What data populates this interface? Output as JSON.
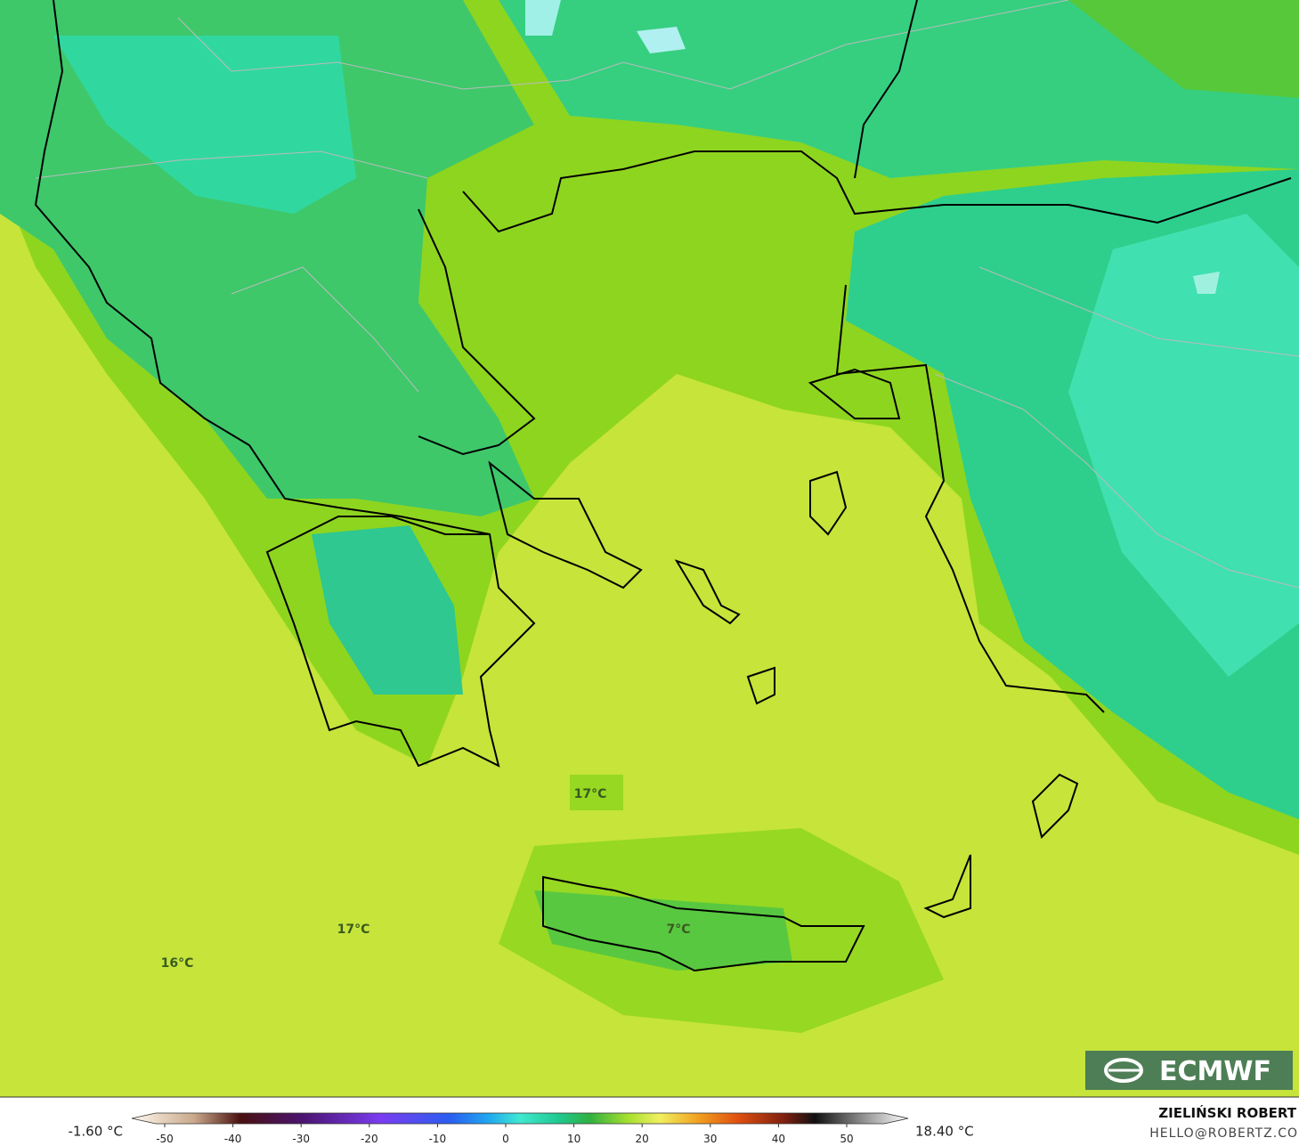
{
  "map": {
    "labels": [
      {
        "text": "17°C"
      },
      {
        "text": "17°C"
      },
      {
        "text": "16°C"
      },
      {
        "text": "7°C"
      }
    ],
    "logo": "ECMWF",
    "colorbar": {
      "min_label": "-1.60 °C",
      "max_label": "18.40 °C",
      "ticks": [
        -50,
        -40,
        -30,
        -20,
        -10,
        0,
        10,
        20,
        30,
        40,
        50
      ]
    },
    "credits": {
      "author": "ZIELIŃSKI ROBERT",
      "contact": "HELLO@ROBERTZ.CO"
    }
  }
}
